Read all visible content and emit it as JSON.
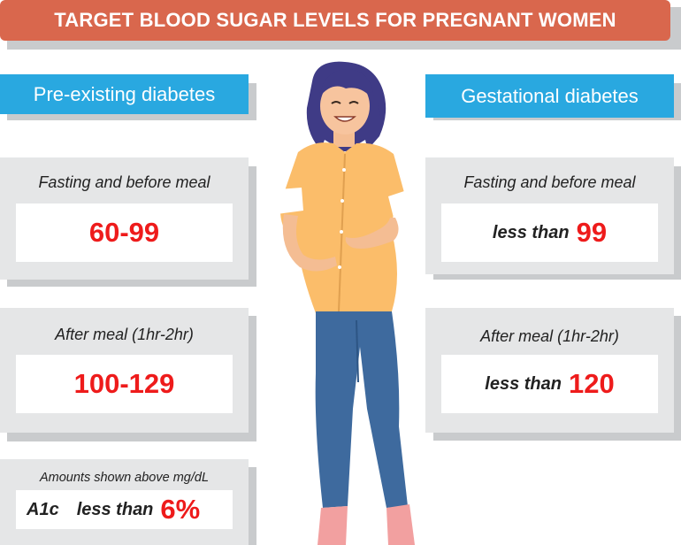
{
  "title": "TARGET BLOOD SUGAR LEVELS FOR PREGNANT WOMEN",
  "left": {
    "label": "Pre-existing diabetes",
    "fasting": {
      "title": "Fasting and before meal",
      "value": "60-99"
    },
    "after": {
      "title": "After meal (1hr-2hr)",
      "value": "100-129"
    },
    "note": "Amounts shown above mg/dL",
    "a1c": {
      "label": "A1c",
      "prefix": "less than",
      "value": "6%"
    }
  },
  "right": {
    "label": "Gestational diabetes",
    "fasting": {
      "title": "Fasting and before meal",
      "prefix": "less than",
      "value": "99"
    },
    "after": {
      "title": "After meal (1hr-2hr)",
      "prefix": "less than",
      "value": "120"
    }
  },
  "colors": {
    "banner": "#d9674d",
    "label": "#29a8e0",
    "value": "#ee1b1b",
    "card": "#e5e6e7"
  }
}
